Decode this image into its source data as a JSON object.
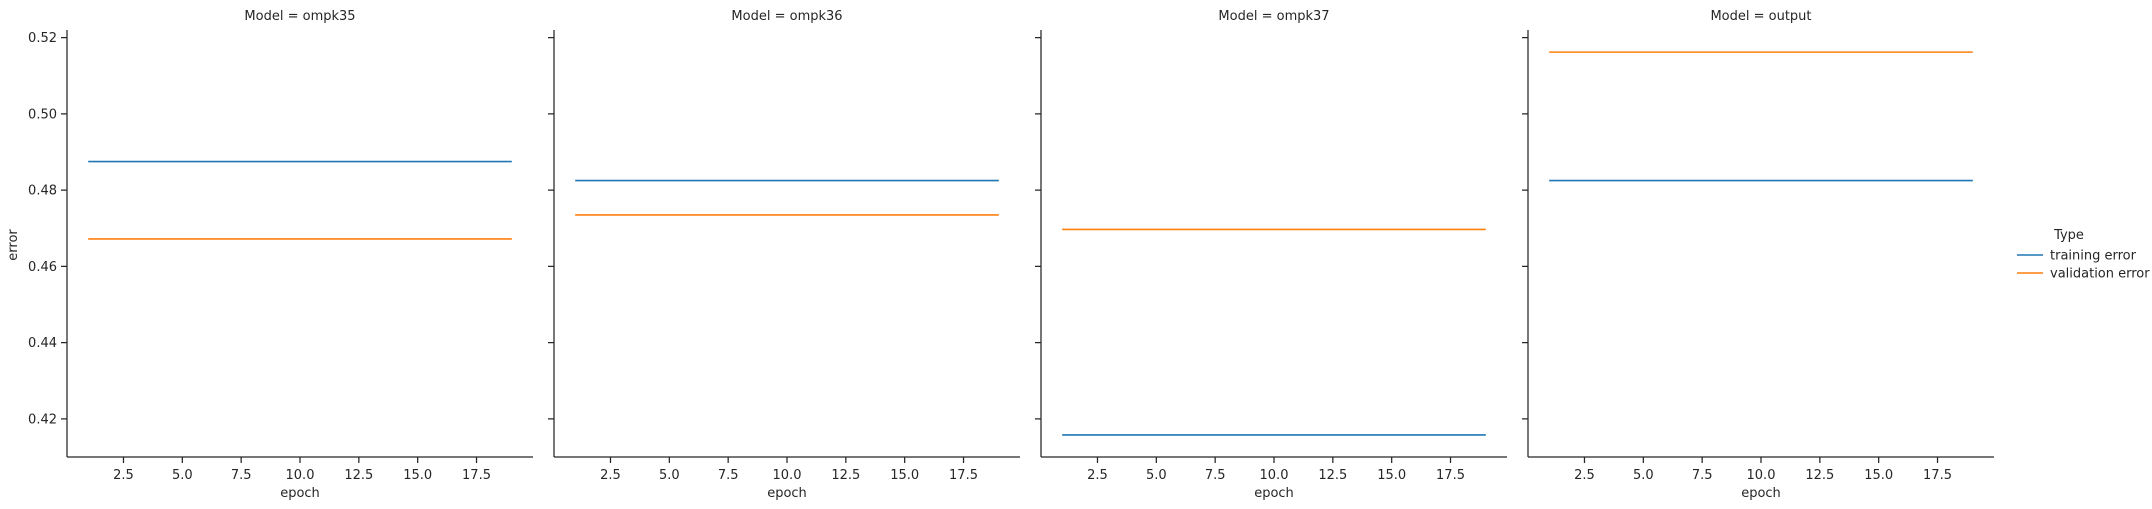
{
  "chart_data": {
    "type": "line",
    "facet_variable": "Model",
    "xlabel": "epoch",
    "ylabel": "error",
    "xlim": [
      0.1,
      19.9
    ],
    "ylim": [
      0.41,
      0.522
    ],
    "x_ticks": [
      2.5,
      5.0,
      7.5,
      10.0,
      12.5,
      15.0,
      17.5
    ],
    "y_ticks": [
      0.42,
      0.44,
      0.46,
      0.48,
      0.5,
      0.52
    ],
    "x_tick_labels": [
      "2.5",
      "5.0",
      "7.5",
      "10.0",
      "12.5",
      "15.0",
      "17.5"
    ],
    "y_tick_labels": [
      "0.42",
      "0.44",
      "0.46",
      "0.48",
      "0.50",
      "0.52"
    ],
    "x_range": [
      1,
      19
    ],
    "grid": false,
    "legend": {
      "title": "Type",
      "placement": "right",
      "entries": [
        {
          "name": "training error",
          "color": "#1f77b4"
        },
        {
          "name": "validation error",
          "color": "#ff7f0e"
        }
      ]
    },
    "facets": [
      {
        "title": "Model = ompk35",
        "series": [
          {
            "name": "training error",
            "x": [
              1,
              19
            ],
            "y": [
              0.4875,
              0.4875
            ]
          },
          {
            "name": "validation error",
            "x": [
              1,
              19
            ],
            "y": [
              0.4672,
              0.4672
            ]
          }
        ]
      },
      {
        "title": "Model = ompk36",
        "series": [
          {
            "name": "training error",
            "x": [
              1,
              19
            ],
            "y": [
              0.4825,
              0.4825
            ]
          },
          {
            "name": "validation error",
            "x": [
              1,
              19
            ],
            "y": [
              0.4735,
              0.4735
            ]
          }
        ]
      },
      {
        "title": "Model = ompk37",
        "series": [
          {
            "name": "training error",
            "x": [
              1,
              19
            ],
            "y": [
              0.4158,
              0.4158
            ]
          },
          {
            "name": "validation error",
            "x": [
              1,
              19
            ],
            "y": [
              0.4697,
              0.4697
            ]
          }
        ]
      },
      {
        "title": "Model = output",
        "series": [
          {
            "name": "training error",
            "x": [
              1,
              19
            ],
            "y": [
              0.4825,
              0.4825
            ]
          },
          {
            "name": "validation error",
            "x": [
              1,
              19
            ],
            "y": [
              0.5162,
              0.5162
            ]
          }
        ]
      }
    ]
  }
}
